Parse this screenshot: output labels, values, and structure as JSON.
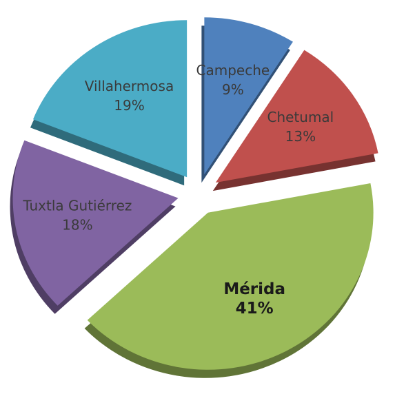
{
  "chart_data": {
    "type": "pie",
    "categories": [
      "Campeche",
      "Chetumal",
      "Mérida",
      "Tuxtla Gutiérrez",
      "Villahermosa"
    ],
    "values": [
      9,
      13,
      41,
      18,
      19
    ],
    "value_labels": [
      "9%",
      "13%",
      "41%",
      "18%",
      "19%"
    ],
    "colors": [
      "#4f81bd",
      "#c0504d",
      "#9bbb59",
      "#8064a2",
      "#4bacc6"
    ],
    "start_angle": 90,
    "direction": "clockwise",
    "exploded": true,
    "three_d": true
  }
}
